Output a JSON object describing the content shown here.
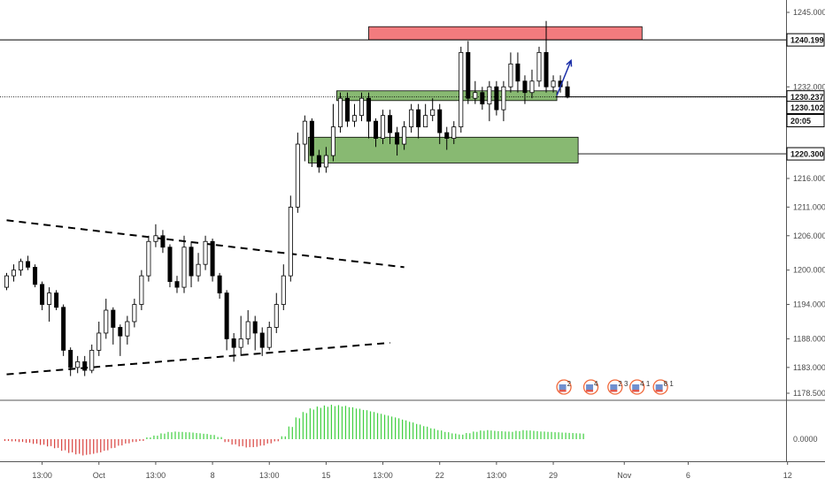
{
  "chart_data": [
    {
      "type": "candlestick",
      "title": "",
      "xlabel": "",
      "ylabel": "",
      "ylim": [
        1174,
        1248
      ],
      "grid": false,
      "y_ticks": [
        "1245.000",
        "1232.000",
        "1216.000",
        "1211.000",
        "1206.000",
        "1200.000",
        "1194.000",
        "1188.000",
        "1183.000",
        "1178.500"
      ],
      "y_tick_values": [
        1245,
        1232,
        1216,
        1211,
        1206,
        1200,
        1194,
        1188,
        1183,
        1178.5
      ],
      "x_ticks": [
        "13:00",
        "Oct",
        "13:00",
        "8",
        "13:00",
        "15",
        "13:00",
        "22",
        "13:00",
        "29",
        "Nov",
        "6",
        "12"
      ],
      "x_tick_index": [
        5,
        13,
        21,
        29,
        37,
        45,
        53,
        61,
        69,
        77,
        87,
        96,
        110
      ],
      "candles": [
        [
          1197,
          1199,
          1199.5,
          1196.5
        ],
        [
          1199,
          1200,
          1201,
          1198
        ],
        [
          1200,
          1201.5,
          1202,
          1199
        ],
        [
          1201.5,
          1200.5,
          1202.5,
          1200
        ],
        [
          1200.5,
          1197.5,
          1201,
          1197
        ],
        [
          1197.5,
          1194,
          1198,
          1193
        ],
        [
          1194,
          1196,
          1197,
          1191
        ],
        [
          1196,
          1193.5,
          1196.5,
          1193
        ],
        [
          1193.5,
          1186,
          1194,
          1185
        ],
        [
          1186,
          1183,
          1186.5,
          1181.5
        ],
        [
          1183,
          1184,
          1185,
          1182
        ],
        [
          1184,
          1182.5,
          1185,
          1181.5
        ],
        [
          1182.5,
          1186,
          1187,
          1182
        ],
        [
          1186,
          1189,
          1191,
          1185
        ],
        [
          1189,
          1193,
          1195,
          1188
        ],
        [
          1193,
          1190,
          1193.5,
          1187
        ],
        [
          1190,
          1188.5,
          1190.5,
          1185
        ],
        [
          1188.5,
          1191,
          1192,
          1187
        ],
        [
          1191,
          1194,
          1195,
          1190
        ],
        [
          1194,
          1199,
          1200,
          1193
        ],
        [
          1199,
          1205,
          1206,
          1198
        ],
        [
          1205,
          1206,
          1208,
          1204
        ],
        [
          1206,
          1204,
          1207,
          1203
        ],
        [
          1204,
          1198,
          1204.5,
          1197
        ],
        [
          1198,
          1197,
          1199,
          1196
        ],
        [
          1197,
          1204,
          1206,
          1196
        ],
        [
          1204,
          1199,
          1205,
          1197
        ],
        [
          1199,
          1201,
          1203,
          1198
        ],
        [
          1201,
          1205,
          1206,
          1200
        ],
        [
          1205,
          1199,
          1205.5,
          1198
        ],
        [
          1199,
          1196,
          1199.5,
          1195
        ],
        [
          1196,
          1188,
          1196.5,
          1186
        ],
        [
          1188,
          1186.5,
          1189,
          1184
        ],
        [
          1186.5,
          1188,
          1192,
          1185
        ],
        [
          1188,
          1191,
          1193,
          1187
        ],
        [
          1191,
          1189,
          1192,
          1186
        ],
        [
          1189,
          1186.5,
          1190,
          1185
        ],
        [
          1186.5,
          1190,
          1191,
          1186
        ],
        [
          1190,
          1194,
          1196,
          1189
        ],
        [
          1194,
          1199,
          1201,
          1193
        ],
        [
          1199,
          1211,
          1213,
          1198
        ],
        [
          1211,
          1222,
          1224,
          1210
        ],
        [
          1222,
          1226,
          1227,
          1219
        ],
        [
          1226,
          1220,
          1226.5,
          1218
        ],
        [
          1220,
          1218,
          1221,
          1217
        ],
        [
          1218,
          1220,
          1221.5,
          1217
        ],
        [
          1220,
          1225,
          1229,
          1219
        ],
        [
          1225,
          1230,
          1231,
          1224
        ],
        [
          1230,
          1226,
          1231,
          1225
        ],
        [
          1226,
          1227,
          1229,
          1225
        ],
        [
          1227,
          1230,
          1231,
          1226
        ],
        [
          1230,
          1226,
          1231,
          1223
        ],
        [
          1226,
          1223,
          1226.5,
          1221.5
        ],
        [
          1223,
          1227,
          1228,
          1222
        ],
        [
          1227,
          1224,
          1228,
          1222
        ],
        [
          1224,
          1222,
          1225,
          1220
        ],
        [
          1222,
          1225,
          1226,
          1221
        ],
        [
          1225,
          1228,
          1229,
          1224
        ],
        [
          1228,
          1225,
          1229,
          1223
        ],
        [
          1225,
          1227,
          1229,
          1225
        ],
        [
          1227,
          1228,
          1230,
          1226
        ],
        [
          1228,
          1224,
          1229,
          1222
        ],
        [
          1224,
          1223,
          1225,
          1221
        ],
        [
          1223,
          1225,
          1226,
          1222
        ],
        [
          1225,
          1238,
          1239,
          1224
        ],
        [
          1238,
          1230,
          1240,
          1229
        ],
        [
          1230,
          1231,
          1233,
          1229
        ],
        [
          1231,
          1229,
          1232,
          1228
        ],
        [
          1229,
          1232,
          1233,
          1226
        ],
        [
          1232,
          1228,
          1233,
          1227
        ],
        [
          1228,
          1232,
          1233,
          1226
        ],
        [
          1232,
          1236,
          1238,
          1231
        ],
        [
          1236,
          1233,
          1238,
          1231
        ],
        [
          1233,
          1231,
          1234,
          1229
        ],
        [
          1231,
          1233,
          1235,
          1230
        ],
        [
          1233,
          1238,
          1239,
          1232
        ],
        [
          1238,
          1232,
          1243.5,
          1231
        ],
        [
          1232,
          1233,
          1234,
          1231
        ],
        [
          1233,
          1232,
          1234,
          1231
        ],
        [
          1232,
          1230.2,
          1233,
          1230
        ]
      ],
      "oscillator": {
        "type": "histogram",
        "zero_label": "0.0000",
        "values": [
          -0.5,
          -0.6,
          -0.8,
          -1,
          -1.3,
          -1.6,
          -2,
          -2.5,
          -3.2,
          -3.8,
          -4.2,
          -4.5,
          -4.2,
          -3.8,
          -3.2,
          -2.5,
          -1.8,
          -1.2,
          -0.8,
          -0.5,
          0.5,
          1,
          1.6,
          2,
          2.1,
          2,
          1.9,
          1.7,
          1.5,
          1.2,
          0.6,
          -0.8,
          -1.5,
          -2,
          -2.3,
          -2.2,
          -1.8,
          -1.2,
          -0.6,
          0.8,
          3.5,
          6,
          7.5,
          8.5,
          9,
          9.3,
          9.5,
          9.4,
          9.2,
          8.8,
          8.4,
          8,
          7.5,
          7,
          6.5,
          6,
          5.4,
          4.8,
          4.2,
          3.6,
          3,
          2.5,
          2,
          1.6,
          1.3,
          1.7,
          2.1,
          2.4,
          2.5,
          2.3,
          2.2,
          2.1,
          2.3,
          2.5,
          2.4,
          2.2,
          2.1,
          2,
          1.9,
          1.8,
          1.7,
          1.6
        ]
      }
    }
  ],
  "zones": [
    {
      "name": "resistance-zone",
      "color": "#ef5a5e",
      "y_top": 1242.5,
      "y_bottom": 1240.2,
      "i_start": 51,
      "i_end": 89.5
    },
    {
      "name": "support-zone-upper",
      "color": "#6aa84f",
      "y_top": 1231.3,
      "y_bottom": 1229.6,
      "i_start": 46.5,
      "i_end": 77.5
    },
    {
      "name": "support-zone-lower",
      "color": "#6aa84f",
      "y_top": 1223.2,
      "y_bottom": 1218.7,
      "i_start": 42.5,
      "i_end": 80.5
    }
  ],
  "lines": {
    "resistance_level": 1240.199,
    "current_level": 1230.237,
    "support_level": 1220.3
  },
  "trendlines": [
    {
      "name": "upper-trendline",
      "p1": [
        0,
        1208.7
      ],
      "p2": [
        56,
        1200.5
      ]
    },
    {
      "name": "lower-trendline",
      "p1": [
        0,
        1181.8
      ],
      "p2": [
        54,
        1187.3
      ]
    }
  ],
  "arrow": {
    "from": [
      77.5,
      1230.5
    ],
    "to": [
      79.5,
      1236.6
    ],
    "color": "#1a2ea8"
  },
  "price_tags": [
    {
      "label": "1240.199",
      "value": 1240.199,
      "dark": false
    },
    {
      "label": "1230.237",
      "value": 1230.237,
      "dark": false
    },
    {
      "label": "1230.102",
      "value": 1228.4,
      "dark": true
    },
    {
      "label": "20:05",
      "value": 1226.1,
      "dark": true
    },
    {
      "label": "1220.300",
      "value": 1220.3,
      "dark": false
    }
  ],
  "partial_ticks": [
    {
      "label": "12",
      "value": 1225.5
    }
  ],
  "events": [
    {
      "label": "2",
      "i": 78.5
    },
    {
      "label": "4",
      "i": 82.3
    },
    {
      "label": "2 3",
      "i": 85.7
    },
    {
      "label": "4 1",
      "i": 88.8
    },
    {
      "label": "8 1",
      "i": 92.1
    }
  ],
  "colors": {
    "up": "#ffffff",
    "down": "#000000",
    "wick": "#000000",
    "hist_positive": "#3fcf3f",
    "hist_negative": "#d9423f",
    "axis_line": "#555555",
    "event_orange": "#f0683a"
  }
}
